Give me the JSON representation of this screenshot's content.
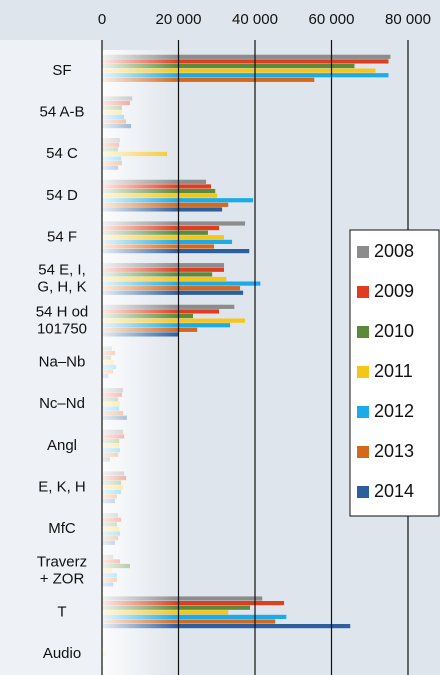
{
  "chart_data": {
    "type": "bar",
    "orientation": "horizontal",
    "categories": [
      "SF",
      "54 A-B",
      "54 C",
      "54 D",
      "54 F",
      "54 E, I,\nG, H, K",
      "54 H od\n101750",
      "Na–Nb",
      "Nc–Nd",
      "Angl",
      "E, K, H",
      "MfC",
      "Traverz\n+ ZOR",
      "T",
      "Audio"
    ],
    "series": [
      {
        "name": "2008",
        "color": "#8c8c8c",
        "values": [
          75400,
          7900,
          4700,
          27200,
          37400,
          31900,
          34600,
          2600,
          5500,
          5500,
          5800,
          4200,
          2900,
          41900,
          300
        ]
      },
      {
        "name": "2009",
        "color": "#e03c1f",
        "values": [
          74900,
          7300,
          4500,
          28500,
          30600,
          31900,
          30600,
          3400,
          5200,
          5800,
          6300,
          5000,
          4700,
          47600,
          300
        ]
      },
      {
        "name": "2010",
        "color": "#5a8a3a",
        "values": [
          66000,
          5200,
          4200,
          29600,
          27700,
          28800,
          23800,
          2400,
          4200,
          4500,
          5000,
          3900,
          7300,
          38700,
          100
        ]
      },
      {
        "name": "2011",
        "color": "#f5c518",
        "values": [
          71500,
          5200,
          17000,
          30100,
          31900,
          32500,
          37400,
          3100,
          4700,
          4500,
          5500,
          4500,
          2600,
          33000,
          1000
        ]
      },
      {
        "name": "2012",
        "color": "#1aabe8",
        "values": [
          74900,
          5800,
          5000,
          39500,
          34000,
          41400,
          33500,
          3700,
          4500,
          4700,
          5000,
          4700,
          3900,
          48200,
          100
        ]
      },
      {
        "name": "2013",
        "color": "#d2691e",
        "values": [
          55500,
          6300,
          5200,
          33000,
          29300,
          36100,
          24900,
          2900,
          5500,
          4200,
          3900,
          4200,
          3900,
          45300,
          100
        ]
      },
      {
        "name": "2014",
        "color": "#2b5f9e",
        "values": [
          0,
          7600,
          4200,
          31400,
          38500,
          36900,
          19900,
          1600,
          6500,
          2100,
          3400,
          3400,
          2900,
          64900,
          300
        ]
      }
    ],
    "xlim": [
      0,
      80000
    ],
    "xticks": [
      0,
      {
        "value": 20000,
        "label": "20 000"
      },
      {
        "value": 40000,
        "label": "40 000"
      },
      {
        "value": 60000,
        "label": "60 000"
      },
      {
        "value": 80000,
        "label": "80 000"
      }
    ],
    "grid": true,
    "legend": "right"
  }
}
